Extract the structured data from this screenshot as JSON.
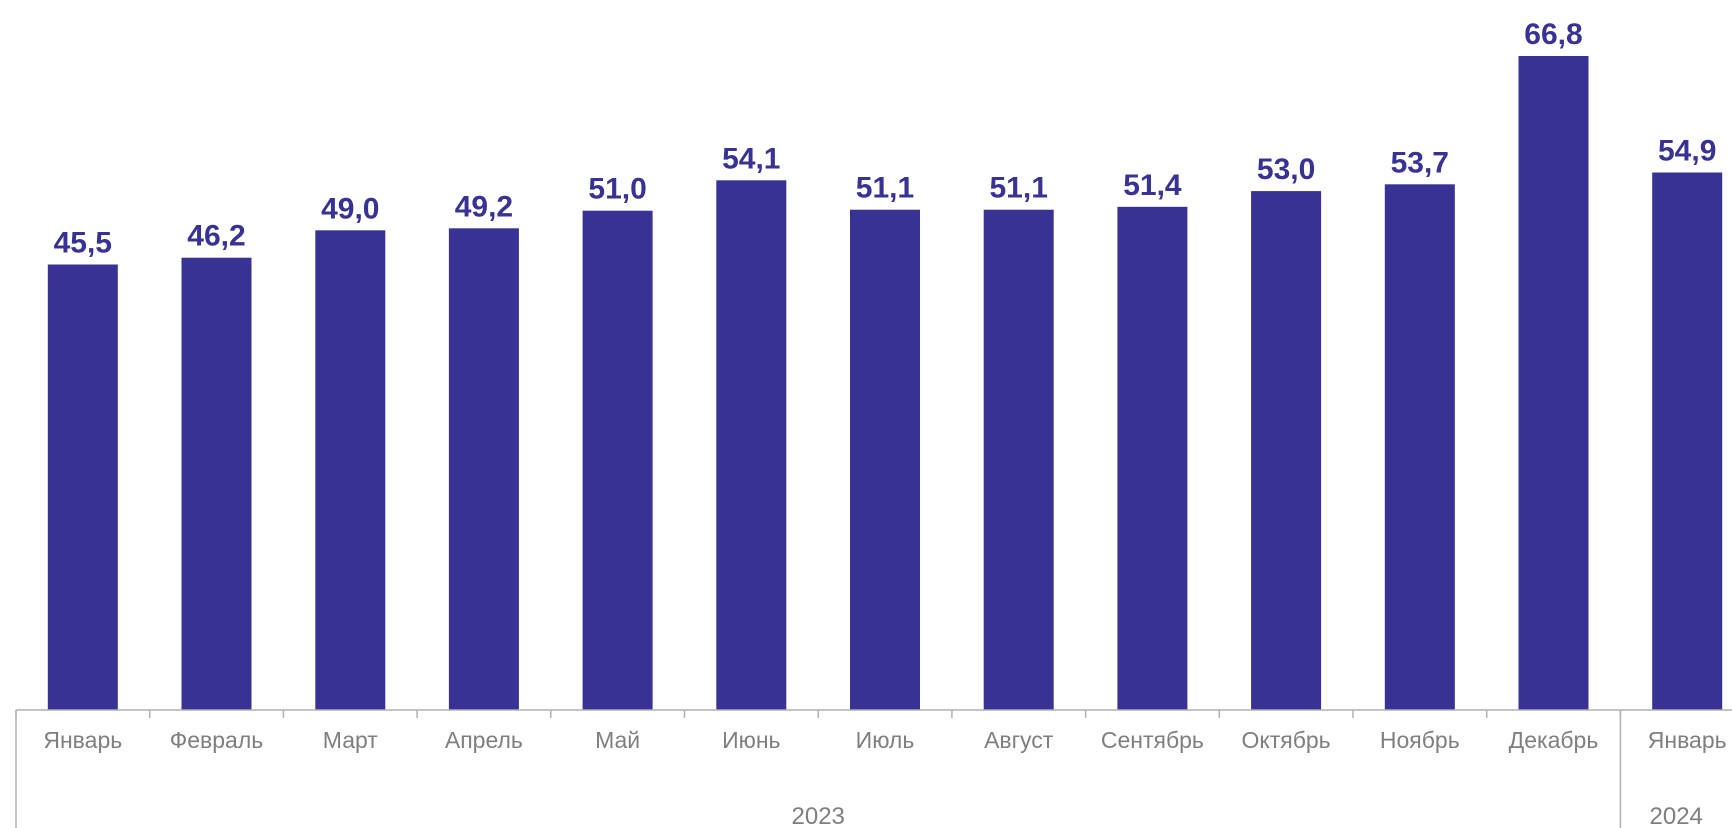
{
  "chart_data": {
    "type": "bar",
    "title": "",
    "xlabel": "",
    "ylabel": "",
    "ylim": [
      0,
      70
    ],
    "grid": false,
    "legend": "none",
    "bar_color": "#373294",
    "label_color": "#373294",
    "tick_color": "#7f7f7f",
    "categories": [
      "Январь",
      "Февраль",
      "Март",
      "Апрель",
      "Май",
      "Июнь",
      "Июль",
      "Август",
      "Сентябрь",
      "Октябрь",
      "Ноябрь",
      "Декабрь",
      "Январь"
    ],
    "values": [
      45.5,
      46.2,
      49.0,
      49.2,
      51.0,
      54.1,
      51.1,
      51.1,
      51.4,
      53.0,
      53.7,
      66.8,
      54.9
    ],
    "data_labels": [
      "45,5",
      "46,2",
      "49,0",
      "49,2",
      "51,0",
      "54,1",
      "51,1",
      "51,1",
      "51,4",
      "53,0",
      "53,7",
      "66,8",
      "54,9"
    ],
    "groups": [
      {
        "label": "2023",
        "count": 12
      },
      {
        "label": "2024",
        "count": 1
      }
    ]
  }
}
